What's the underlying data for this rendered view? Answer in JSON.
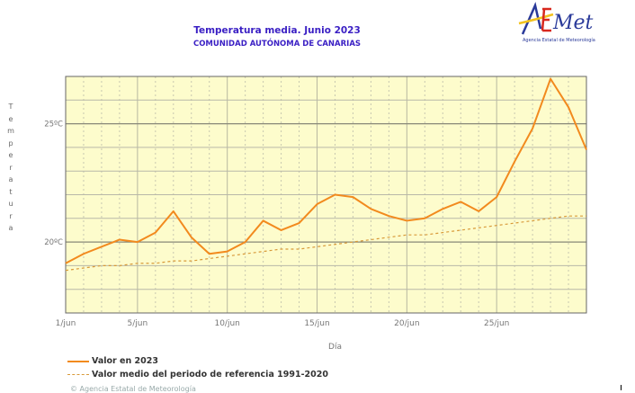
{
  "header": {
    "title": "Temperatura media. Junio 2023",
    "subtitle": "COMUNIDAD AUTÓNOMA DE CANARIAS"
  },
  "logo": {
    "text": "AEMet",
    "tagline": "Agencia Estatal de Meteorología"
  },
  "footer": {
    "text": "© Agencia Estatal de Meteorología"
  },
  "chart_data": {
    "type": "line",
    "title": "Temperatura media. Junio 2023",
    "xlabel": "Día",
    "ylabel": "Temperatura",
    "x": [
      1,
      2,
      3,
      4,
      5,
      6,
      7,
      8,
      9,
      10,
      11,
      12,
      13,
      14,
      15,
      16,
      17,
      18,
      19,
      20,
      21,
      22,
      23,
      24,
      25,
      26,
      27,
      28,
      29,
      30
    ],
    "xlim": [
      1,
      30
    ],
    "ylim": [
      17,
      27
    ],
    "xticks": [
      {
        "value": 1,
        "label": "1/jun"
      },
      {
        "value": 5,
        "label": "5/jun"
      },
      {
        "value": 10,
        "label": "10/jun"
      },
      {
        "value": 15,
        "label": "15/jun"
      },
      {
        "value": 20,
        "label": "20/jun"
      },
      {
        "value": 25,
        "label": "25/jun"
      }
    ],
    "yticks": [
      {
        "value": 20,
        "label": "20ºC"
      },
      {
        "value": 25,
        "label": "25ºC"
      }
    ],
    "grid": true,
    "background": "#fdfccc",
    "legend_position": "bottom-left",
    "series": [
      {
        "name": "Valor en 2023",
        "color": "#f28a1e",
        "style": "solid",
        "values": [
          19.1,
          19.5,
          19.8,
          20.1,
          20.0,
          20.4,
          21.3,
          20.2,
          19.5,
          19.6,
          20.0,
          20.9,
          20.5,
          20.8,
          21.6,
          22.0,
          21.9,
          21.4,
          21.1,
          20.9,
          21.0,
          21.4,
          21.7,
          21.3,
          21.9,
          23.4,
          24.8,
          26.9,
          25.7,
          23.9
        ]
      },
      {
        "name": "Valor medio del periodo de referencia 1991-2020",
        "color": "#d89a3a",
        "style": "dashed",
        "values": [
          18.8,
          18.9,
          19.0,
          19.0,
          19.1,
          19.1,
          19.2,
          19.2,
          19.3,
          19.4,
          19.5,
          19.6,
          19.7,
          19.7,
          19.8,
          19.9,
          20.0,
          20.1,
          20.2,
          20.3,
          20.3,
          20.4,
          20.5,
          20.6,
          20.7,
          20.8,
          20.9,
          21.0,
          21.1,
          21.1
        ]
      }
    ]
  }
}
